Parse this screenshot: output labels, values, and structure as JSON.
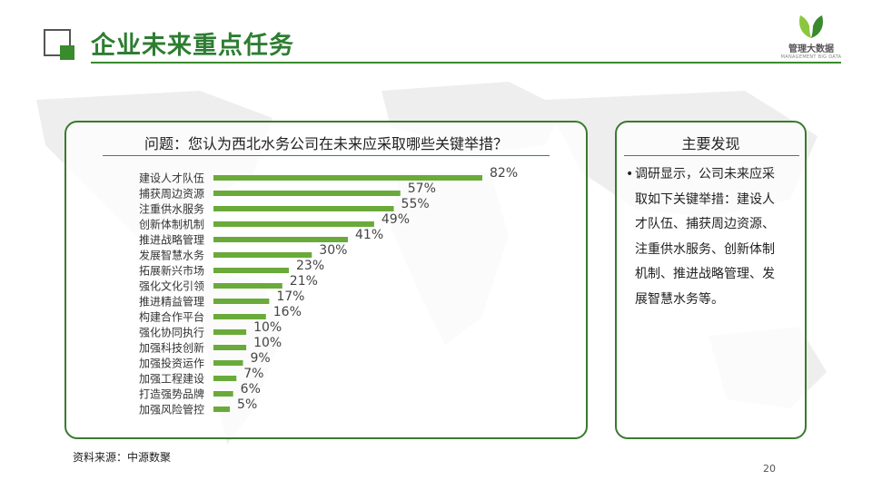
{
  "slide": {
    "title": "企业未来重点任务",
    "logo_cn": "管理大数据",
    "logo_en": "MANAGEMENT BIG DATA",
    "source": "资料来源：中源数聚",
    "page_number": "20",
    "accent_color": "#2e7d32",
    "bar_color": "#6aaa3a"
  },
  "left_panel": {
    "question": "问题：您认为西北水务公司在未来应采取哪些关键举措？"
  },
  "right_panel": {
    "heading": "主要发现",
    "bullet": "•",
    "lines": [
      "调研显示，公司未来应采",
      "取如下关键举措：建设人",
      "才队伍、捕获周边资源、",
      "注重供水服务、创新体制",
      "机制、推进战略管理、发",
      "展智慧水务等。"
    ]
  },
  "chart_data": {
    "type": "bar",
    "orientation": "horizontal",
    "categories": [
      "建设人才队伍",
      "捕获周边资源",
      "注重供水服务",
      "创新体制机制",
      "推进战略管理",
      "发展智慧水务",
      "拓展新兴市场",
      "强化文化引领",
      "推进精益管理",
      "构建合作平台",
      "强化协同执行",
      "加强科技创新",
      "加强投资运作",
      "加强工程建设",
      "打造强势品牌",
      "加强风险管控"
    ],
    "values": [
      82,
      57,
      55,
      49,
      41,
      30,
      23,
      21,
      17,
      16,
      10,
      10,
      9,
      7,
      6,
      5
    ],
    "value_labels": [
      "82%",
      "57%",
      "55%",
      "49%",
      "41%",
      "30%",
      "23%",
      "21%",
      "17%",
      "16%",
      "10%",
      "10%",
      "9%",
      "7%",
      "6%",
      "5%"
    ],
    "xlim": [
      0,
      100
    ],
    "title": "",
    "xlabel": "",
    "ylabel": ""
  }
}
